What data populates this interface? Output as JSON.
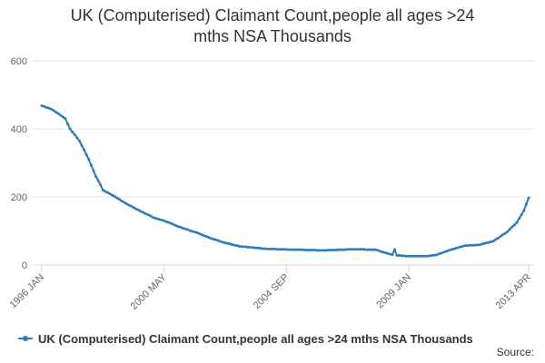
{
  "chart_data": {
    "type": "line",
    "title": "UK (Computerised) Claimant Count,people all ages >24 mths NSA Thousands",
    "source": "Source:",
    "categories": [
      "1996 JAN",
      null,
      null,
      null,
      null,
      null,
      null,
      null,
      null,
      null,
      null,
      null,
      null,
      null,
      null,
      null,
      null,
      null,
      null,
      null,
      null,
      null,
      null,
      null,
      null,
      null,
      null,
      null,
      null,
      null,
      null,
      null,
      null,
      null,
      null,
      null,
      null,
      null,
      null,
      null,
      null,
      null,
      null,
      null,
      null,
      null,
      null,
      null,
      null,
      null,
      null,
      null,
      "2000 MAY",
      null,
      null,
      null,
      null,
      null,
      null,
      null,
      null,
      null,
      null,
      null,
      null,
      null,
      null,
      null,
      null,
      null,
      null,
      null,
      null,
      null,
      null,
      null,
      null,
      null,
      null,
      null,
      null,
      null,
      null,
      null,
      null,
      null,
      null,
      null,
      null,
      null,
      null,
      null,
      null,
      null,
      null,
      null,
      null,
      null,
      null,
      null,
      null,
      null,
      null,
      null,
      "2004 SEP",
      null,
      null,
      null,
      null,
      null,
      null,
      null,
      null,
      null,
      null,
      null,
      null,
      null,
      null,
      null,
      null,
      null,
      null,
      null,
      null,
      null,
      null,
      null,
      null,
      null,
      null,
      null,
      null,
      null,
      null,
      null,
      null,
      null,
      null,
      null,
      null,
      null,
      null,
      null,
      null,
      null,
      null,
      null,
      null,
      null,
      null,
      null,
      null,
      null,
      null,
      null,
      "2009 JAN",
      null,
      null,
      null,
      null,
      null,
      null,
      null,
      null,
      null,
      null,
      null,
      null,
      null,
      null,
      null,
      null,
      null,
      null,
      null,
      null,
      null,
      null,
      null,
      null,
      null,
      null,
      null,
      null,
      null,
      null,
      null,
      null,
      null,
      null,
      null,
      null,
      null,
      null,
      null,
      null,
      null,
      null,
      null,
      null,
      null,
      null,
      null,
      null,
      null,
      null,
      "2013 APR"
    ],
    "series": [
      {
        "name": "UK (Computerised) Claimant Count,people all ages >24 mths NSA Thousands",
        "color": "#2b7bb9",
        "values": [
          468,
          466,
          463,
          461,
          458,
          454,
          449,
          445,
          440,
          435,
          430,
          415,
          400,
          391,
          383,
          374,
          365,
          351,
          338,
          324,
          310,
          293,
          277,
          260,
          248,
          235,
          220,
          216,
          213,
          209,
          205,
          201,
          197,
          193,
          188,
          184,
          180,
          176,
          173,
          169,
          165,
          162,
          158,
          155,
          151,
          148,
          145,
          141,
          138,
          136,
          134,
          132,
          130,
          127,
          125,
          122,
          119,
          116,
          113,
          111,
          108,
          106,
          104,
          101,
          99,
          97,
          95,
          92,
          89,
          86,
          84,
          81,
          78,
          76,
          74,
          72,
          69,
          67,
          65,
          63,
          62,
          60,
          58,
          57,
          55,
          54,
          54,
          53,
          52,
          52,
          51,
          50,
          50,
          49,
          48,
          48,
          47,
          47,
          47,
          47,
          46,
          46,
          46,
          46,
          46,
          45,
          45,
          45,
          45,
          45,
          45,
          45,
          44,
          44,
          44,
          44,
          44,
          43,
          43,
          43,
          43,
          43,
          44,
          44,
          44,
          44,
          45,
          45,
          45,
          45,
          46,
          46,
          46,
          46,
          46,
          46,
          46,
          46,
          45,
          45,
          45,
          45,
          45,
          43,
          40,
          38,
          36,
          34,
          32,
          30,
          45,
          28,
          28,
          27,
          27,
          26,
          26,
          26,
          26,
          26,
          26,
          26,
          26,
          26,
          26,
          27,
          28,
          29,
          30,
          33,
          35,
          38,
          40,
          43,
          45,
          47,
          49,
          51,
          53,
          55,
          57,
          57,
          58,
          58,
          58,
          59,
          59,
          61,
          63,
          65,
          66,
          68,
          70,
          75,
          79,
          84,
          89,
          93,
          98,
          105,
          112,
          118,
          125,
          137,
          148,
          160,
          179,
          197
        ]
      }
    ],
    "ylim": [
      0,
      600
    ],
    "yticks": [
      0,
      200,
      400,
      600
    ],
    "grid": true,
    "legend": "bottom"
  }
}
